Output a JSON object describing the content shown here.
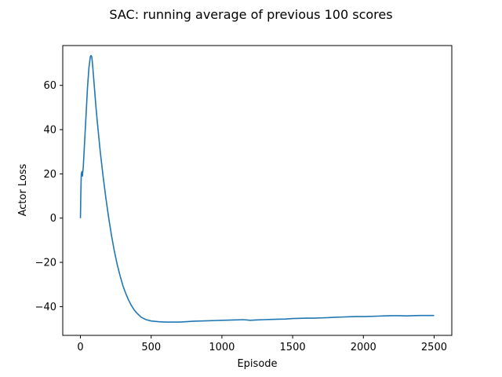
{
  "chart_data": {
    "type": "line",
    "title": "SAC: running average of previous 100 scores",
    "xlabel": "Episode",
    "ylabel": "Actor Loss",
    "xlim": [
      -125,
      2625
    ],
    "ylim": [
      -53,
      78
    ],
    "xticks": [
      0,
      500,
      1000,
      1500,
      2000,
      2500
    ],
    "xtick_labels": [
      "0",
      "500",
      "1000",
      "1500",
      "2000",
      "2500"
    ],
    "yticks": [
      -40,
      -20,
      0,
      20,
      40,
      60
    ],
    "ytick_labels": [
      "−40",
      "−20",
      "0",
      "20",
      "40",
      "60"
    ],
    "grid": false,
    "legend": "none",
    "series": [
      {
        "color": "#1f77b4",
        "x": [
          0,
          3,
          6,
          10,
          14,
          20,
          30,
          40,
          50,
          60,
          70,
          75,
          80,
          85,
          90,
          100,
          110,
          120,
          140,
          160,
          180,
          200,
          220,
          240,
          260,
          280,
          300,
          320,
          340,
          360,
          380,
          400,
          430,
          460,
          500,
          550,
          600,
          650,
          700,
          750,
          800,
          850,
          900,
          950,
          1000,
          1050,
          1100,
          1150,
          1200,
          1250,
          1300,
          1350,
          1400,
          1450,
          1500,
          1550,
          1600,
          1650,
          1700,
          1750,
          1800,
          1850,
          1900,
          1950,
          2000,
          2050,
          2100,
          2150,
          2200,
          2250,
          2300,
          2350,
          2400,
          2450,
          2500
        ],
        "y": [
          0,
          12,
          20,
          21,
          19,
          23,
          35,
          47,
          59,
          68,
          73,
          73.5,
          73,
          70,
          66,
          58,
          50,
          43,
          30,
          19,
          9,
          0,
          -8,
          -15,
          -21,
          -26,
          -30.5,
          -34,
          -37,
          -39.5,
          -41.5,
          -43,
          -44.8,
          -45.8,
          -46.5,
          -46.8,
          -47,
          -47,
          -47,
          -46.8,
          -46.6,
          -46.5,
          -46.4,
          -46.3,
          -46.2,
          -46.1,
          -46,
          -45.9,
          -46.2,
          -46,
          -45.9,
          -45.8,
          -45.7,
          -45.6,
          -45.4,
          -45.3,
          -45.2,
          -45.2,
          -45.1,
          -45,
          -44.8,
          -44.7,
          -44.6,
          -44.5,
          -44.5,
          -44.4,
          -44.3,
          -44.2,
          -44.1,
          -44.1,
          -44.2,
          -44.1,
          -44,
          -44,
          -44
        ]
      }
    ]
  }
}
